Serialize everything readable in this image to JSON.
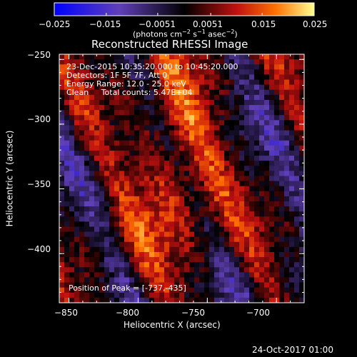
{
  "colorbar": {
    "tick_labels": [
      "−0.025",
      "−0.015",
      "−0.0051",
      "0.0051",
      "0.015",
      "0.025"
    ],
    "tick_values": [
      -0.025,
      -0.015,
      -0.0051,
      0.0051,
      0.015,
      0.025
    ],
    "range": [
      -0.025,
      0.025
    ],
    "units_main": "(photons cm",
    "units_sup1": "−2",
    "units_mid1": " s",
    "units_sup2": "−1",
    "units_mid2": " asec",
    "units_sup3": "−2",
    "units_end": ")"
  },
  "chart_data": {
    "type": "heatmap",
    "title": "Reconstructed RHESSI Image",
    "xlabel": "Heliocentric X (arcsec)",
    "ylabel": "Heliocentric Y (arcsec)",
    "xlim": [
      -857,
      -680
    ],
    "ylim": [
      -438,
      -246
    ],
    "x_ticks": [
      -850,
      -800,
      -750,
      -700
    ],
    "x_tick_labels": [
      "−850",
      "−800",
      "−750",
      "−700"
    ],
    "y_ticks": [
      -250,
      -300,
      -350,
      -400
    ],
    "y_tick_labels": [
      "−250",
      "−300",
      "−350",
      "−400"
    ],
    "annotations": [
      "23-Dec-2015 10:35:20.000 to 10:45:20.000",
      "Detectors: 1F 5F 7F, Att 0",
      "Energy Range: 12.0 - 25.0 keV",
      "Clean     Total counts: 5.47E+04"
    ],
    "peak_label": "Position of Peak = [-737,-435]",
    "peak_position": [
      -737,
      -435
    ],
    "colormap": [
      "#0000ff",
      "#6040b8",
      "#000000",
      "#c01010",
      "#ff7000",
      "#ffff90"
    ]
  },
  "footer": {
    "date": "24-Oct-2017 01:00"
  }
}
